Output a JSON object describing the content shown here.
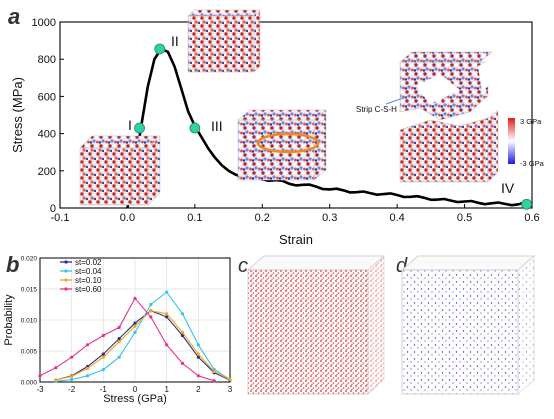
{
  "panels": {
    "a": "a",
    "b": "b",
    "c": "c",
    "d": "d"
  },
  "stage_labels": [
    "I",
    "II",
    "III",
    "IV"
  ],
  "annotations": {
    "strip": "Strip C-S-H",
    "colorbar_max": "3 GPa",
    "colorbar_min": "-3 GPa"
  },
  "colors": {
    "curve": "#000000",
    "marker": "#2fd3a2",
    "ellipse": "#f08a1e",
    "atom_red": "#d02020",
    "atom_blue": "#1f2fb4",
    "atom_white": "#f2f2f2",
    "cube_c": "#e02a2a",
    "cube_d": "#3a3ae0"
  },
  "chart_data": [
    {
      "type": "line",
      "xlabel": "Strain",
      "ylabel": "Stress (MPa)",
      "xlim": [
        -0.1,
        0.6
      ],
      "ylim": [
        0,
        1000
      ],
      "x_ticks": [
        -0.1,
        0.0,
        0.1,
        0.2,
        0.3,
        0.4,
        0.5,
        0.6
      ],
      "y_ticks": [
        0,
        200,
        400,
        600,
        800,
        1000
      ],
      "series": [
        {
          "x": [
            0.0,
            0.01,
            0.02,
            0.03,
            0.04,
            0.05,
            0.06,
            0.07,
            0.08,
            0.09,
            0.1,
            0.11,
            0.12,
            0.13,
            0.14,
            0.15,
            0.16,
            0.18,
            0.2,
            0.22,
            0.24,
            0.26,
            0.28,
            0.3,
            0.32,
            0.34,
            0.36,
            0.38,
            0.4,
            0.42,
            0.44,
            0.46,
            0.48,
            0.5,
            0.52,
            0.54,
            0.56,
            0.58,
            0.59
          ],
          "y": [
            0,
            200,
            430,
            650,
            800,
            855,
            840,
            760,
            640,
            520,
            440,
            380,
            320,
            270,
            230,
            200,
            180,
            165,
            155,
            150,
            130,
            125,
            115,
            100,
            95,
            85,
            80,
            75,
            70,
            60,
            55,
            45,
            40,
            35,
            28,
            25,
            22,
            20,
            20
          ]
        }
      ],
      "markers": [
        {
          "label": "I",
          "x": 0.018,
          "y": 430
        },
        {
          "label": "II",
          "x": 0.048,
          "y": 855
        },
        {
          "label": "III",
          "x": 0.1,
          "y": 430
        },
        {
          "label": "IV",
          "x": 0.592,
          "y": 20
        }
      ]
    },
    {
      "type": "line",
      "xlabel": "Stress (GPa)",
      "ylabel": "Probability",
      "xlim": [
        -3,
        3
      ],
      "ylim": [
        0,
        0.02
      ],
      "x_ticks": [
        -3,
        -2,
        -1,
        0,
        1,
        2,
        3
      ],
      "y_ticks": [
        0.0,
        0.005,
        0.01,
        0.015,
        0.02
      ],
      "series": [
        {
          "name": "st=0.02",
          "color": "#2b2f8f",
          "x": [
            -2.5,
            -2,
            -1.5,
            -1,
            -0.5,
            0,
            0.5,
            1,
            1.5,
            2,
            2.5,
            3
          ],
          "y": [
            0.0003,
            0.001,
            0.0025,
            0.0045,
            0.007,
            0.0095,
            0.0115,
            0.0105,
            0.0075,
            0.004,
            0.0015,
            0.0003
          ]
        },
        {
          "name": "st=0.04",
          "color": "#37c3ef",
          "x": [
            -2.5,
            -2,
            -1.5,
            -1,
            -0.5,
            0,
            0.5,
            1,
            1.5,
            2,
            2.5,
            3
          ],
          "y": [
            0.0001,
            0.0004,
            0.001,
            0.002,
            0.004,
            0.008,
            0.0125,
            0.0145,
            0.011,
            0.006,
            0.002,
            0.0004
          ]
        },
        {
          "name": "st=0.10",
          "color": "#f0a81c",
          "x": [
            -2.5,
            -2,
            -1.5,
            -1,
            -0.5,
            0,
            0.5,
            1,
            1.5,
            2,
            2.5,
            3
          ],
          "y": [
            0.0003,
            0.0009,
            0.0022,
            0.004,
            0.0065,
            0.009,
            0.0115,
            0.011,
            0.008,
            0.0045,
            0.0017,
            0.0004
          ]
        },
        {
          "name": "st=0.60",
          "color": "#e8318f",
          "x": [
            -3,
            -2.5,
            -2,
            -1.5,
            -1,
            -0.5,
            0,
            0.5,
            1,
            1.5,
            2,
            2.5
          ],
          "y": [
            0.001,
            0.0023,
            0.004,
            0.006,
            0.0075,
            0.0088,
            0.0135,
            0.0105,
            0.006,
            0.003,
            0.001,
            0.0002
          ]
        }
      ]
    }
  ]
}
